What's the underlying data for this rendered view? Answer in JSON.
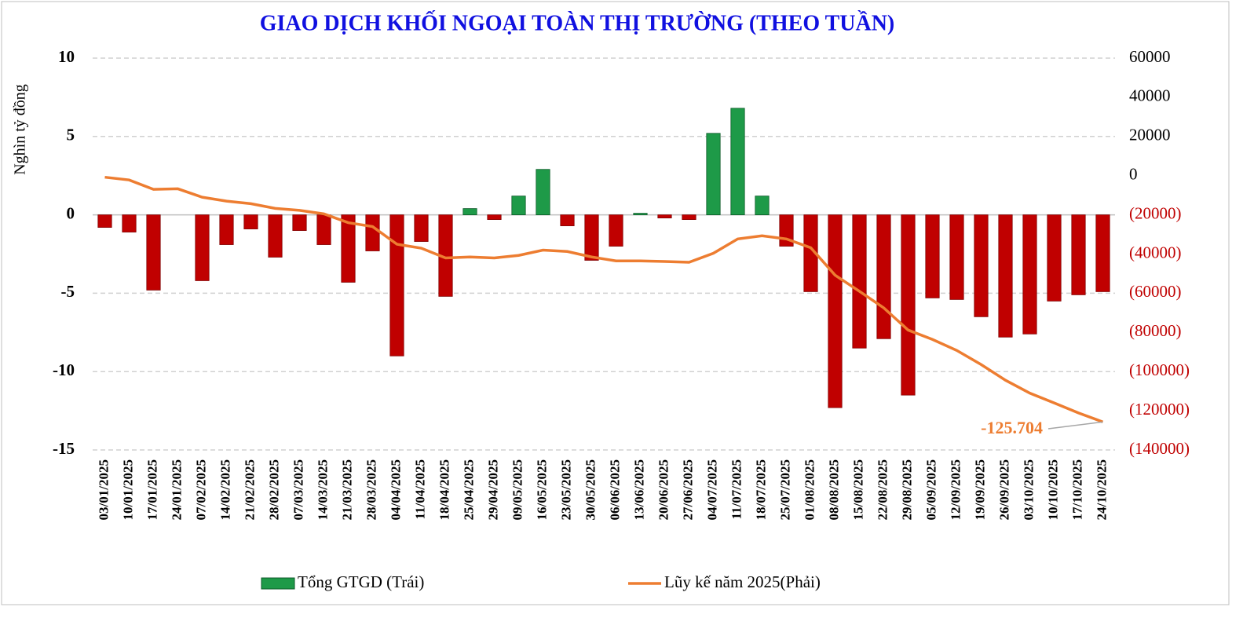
{
  "chart_data": {
    "type": "combo",
    "title": "GIAO DỊCH KHỐI NGOẠI TOÀN THỊ TRƯỜNG (THEO TUẦN)",
    "y_label": "Nghìn tỷ đồng",
    "categories": [
      "03/01/2025",
      "10/01/2025",
      "17/01/2025",
      "24/01/2025",
      "07/02/2025",
      "14/02/2025",
      "21/02/2025",
      "28/02/2025",
      "07/03/2025",
      "14/03/2025",
      "21/03/2025",
      "28/03/2025",
      "04/04/2025",
      "11/04/2025",
      "18/04/2025",
      "25/04/2025",
      "29/04/2025",
      "09/05/2025",
      "16/05/2025",
      "23/05/2025",
      "30/05/2025",
      "06/06/2025",
      "13/06/2025",
      "20/06/2025",
      "27/06/2025",
      "04/07/2025",
      "11/07/2025",
      "18/07/2025",
      "25/07/2025",
      "01/08/2025",
      "08/08/2025",
      "15/08/2025",
      "22/08/2025",
      "29/08/2025",
      "05/09/2025",
      "12/09/2025",
      "19/09/2025",
      "26/09/2025",
      "03/10/2025",
      "10/10/2025",
      "17/10/2025",
      "24/10/2025"
    ],
    "series": [
      {
        "name": "Tổng GTGD (Trái)",
        "type": "bar",
        "color": "#1e9a48",
        "negative_color": "#c00000",
        "values": [
          -0.8,
          -1.1,
          -4.8,
          0,
          -4.2,
          -1.9,
          -0.9,
          -2.7,
          -1.0,
          -1.9,
          -4.3,
          -2.3,
          -9.0,
          -1.7,
          -5.2,
          0.4,
          -0.3,
          1.2,
          2.9,
          -0.7,
          -2.9,
          -2.0,
          0.1,
          -0.2,
          -0.3,
          5.2,
          6.8,
          1.2,
          -2.0,
          -4.9,
          -12.3,
          -8.5,
          -7.9,
          -11.5,
          -5.3,
          -5.4,
          -6.5,
          -7.8,
          -7.6,
          -5.5,
          -5.1,
          -4.9
        ]
      },
      {
        "name": "Lũy kế năm 2025(Phải)",
        "type": "line",
        "axis": "y2",
        "color": "#ed7d31",
        "values": [
          -800,
          -2200,
          -7000,
          -6700,
          -11000,
          -13000,
          -14300,
          -16700,
          -17700,
          -19500,
          -24000,
          -26000,
          -35000,
          -37000,
          -42000,
          -41500,
          -42000,
          -40700,
          -38000,
          -38700,
          -41500,
          -43500,
          -43500,
          -43800,
          -44200,
          -39600,
          -32300,
          -30700,
          -32300,
          -36800,
          -50800,
          -59000,
          -67500,
          -78800,
          -83600,
          -89200,
          -96400,
          -104400,
          -111000,
          -116000,
          -121100,
          -125704
        ]
      }
    ],
    "annotation": "-125.704",
    "ylim": [
      -15,
      10
    ],
    "yticks": [
      10,
      5,
      0,
      -5,
      -10,
      -15
    ],
    "y2lim": [
      -140000,
      60000
    ],
    "y2ticks": [
      60000,
      40000,
      20000,
      0,
      {
        "value": -20000,
        "label": "(20000)"
      },
      {
        "value": -40000,
        "label": "(40000)"
      },
      {
        "value": -60000,
        "label": "(60000)"
      },
      {
        "value": -80000,
        "label": "(80000)"
      },
      {
        "value": -100000,
        "label": "(100000)"
      },
      {
        "value": -120000,
        "label": "(120000)"
      },
      {
        "value": -140000,
        "label": "(140000)"
      }
    ],
    "y2_negative_color": "#c00000",
    "grid": true
  }
}
